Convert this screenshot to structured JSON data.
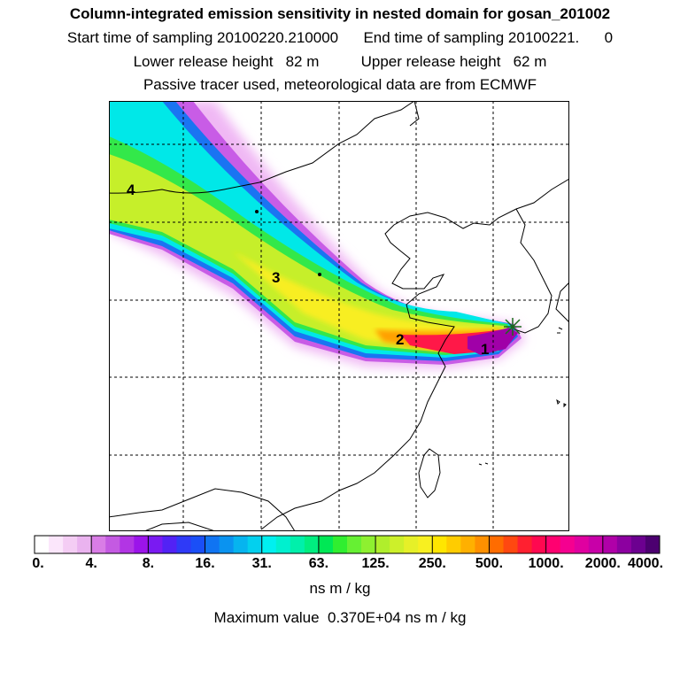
{
  "header": {
    "title": "Column-integrated emission sensitivity in nested domain for gosan_201002",
    "sampling": "Start time of sampling 20100220.210000      End time of sampling 20100221.      0",
    "release": "Lower release height   82 m          Upper release height   62 m",
    "tracer": "Passive tracer used, meteorological data are from ECMWF"
  },
  "map": {
    "region": "East Asia (China, Korea, Japan, Taiwan)",
    "gridlines": "dashed",
    "receptor_marker": "star",
    "points": [
      {
        "label": "1"
      },
      {
        "label": "2"
      },
      {
        "label": "3"
      },
      {
        "label": "4"
      }
    ]
  },
  "legend": {
    "scale": "log",
    "tick_labels": [
      "0.",
      "4.",
      "8.",
      "16.",
      "31.",
      "63.",
      "125.",
      "250.",
      "500.",
      "1000.",
      "2000.",
      "4000."
    ],
    "colors": [
      "#ffffff",
      "#fbe6fb",
      "#f4cdf4",
      "#eab3ef",
      "#d97de6",
      "#c45ae2",
      "#b235e4",
      "#9b14ea",
      "#7a1af2",
      "#5222f5",
      "#2f3af7",
      "#1a4ff7",
      "#1074f2",
      "#0a93f0",
      "#06b4ef",
      "#03d0ee",
      "#00f0f0",
      "#00f0cf",
      "#00f0ab",
      "#00ee80",
      "#00e855",
      "#30ee30",
      "#66f033",
      "#8ef030",
      "#b0ee2c",
      "#cdf02a",
      "#e6f028",
      "#f8f020",
      "#ffe600",
      "#ffcc00",
      "#ffb000",
      "#ff9000",
      "#ff6c00",
      "#ff4810",
      "#ff2030",
      "#ff0850",
      "#ff0070",
      "#f50090",
      "#e000a0",
      "#c800a8",
      "#b000a8",
      "#8c00a0",
      "#6c0090",
      "#4c0070"
    ],
    "units": "ns m / kg",
    "max_value_text": "Maximum value  0.370E+04 ns m / kg"
  }
}
